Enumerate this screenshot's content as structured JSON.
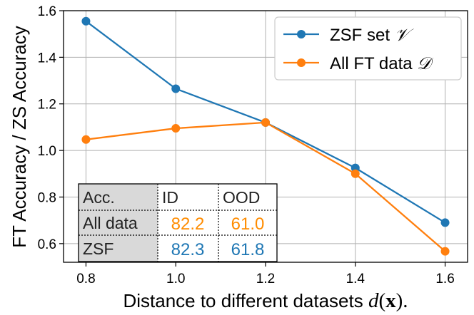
{
  "chart_data": {
    "type": "line",
    "xlabel_prefix": "Distance to different datasets ",
    "xlabel_func": "d",
    "xlabel_arg_open": "(",
    "xlabel_arg": "x",
    "xlabel_arg_close": ").",
    "ylabel": "FT Accuracy / ZS Accuracy",
    "xlim": [
      0.75,
      1.65
    ],
    "ylim": [
      0.52,
      1.6
    ],
    "x_ticks": [
      "0.8",
      "1.0",
      "1.2",
      "1.4",
      "1.6"
    ],
    "y_ticks": [
      "0.6",
      "0.8",
      "1.0",
      "1.2",
      "1.4",
      "1.6"
    ],
    "grid": true,
    "legend_position": "top-right",
    "series": [
      {
        "name_text": "ZSF set ",
        "name_math": "𝒱",
        "color": "#1f77b4",
        "x": [
          0.8,
          1.0,
          1.2,
          1.4,
          1.6
        ],
        "y": [
          1.555,
          1.265,
          1.12,
          0.925,
          0.69
        ]
      },
      {
        "name_text": "All FT data ",
        "name_math": "𝒟",
        "color": "#ff7f0e",
        "x": [
          0.8,
          1.0,
          1.2,
          1.4,
          1.6
        ],
        "y": [
          1.047,
          1.095,
          1.12,
          0.9,
          0.567
        ]
      }
    ],
    "table": {
      "header": [
        "Acc.",
        "ID",
        "OOD"
      ],
      "rows": [
        {
          "label": "All data",
          "id": "82.2",
          "ood": "61.0",
          "color": "#ff8c00"
        },
        {
          "label": "ZSF",
          "id": "82.3",
          "ood": "61.8",
          "color": "#1f77b4"
        }
      ]
    }
  }
}
